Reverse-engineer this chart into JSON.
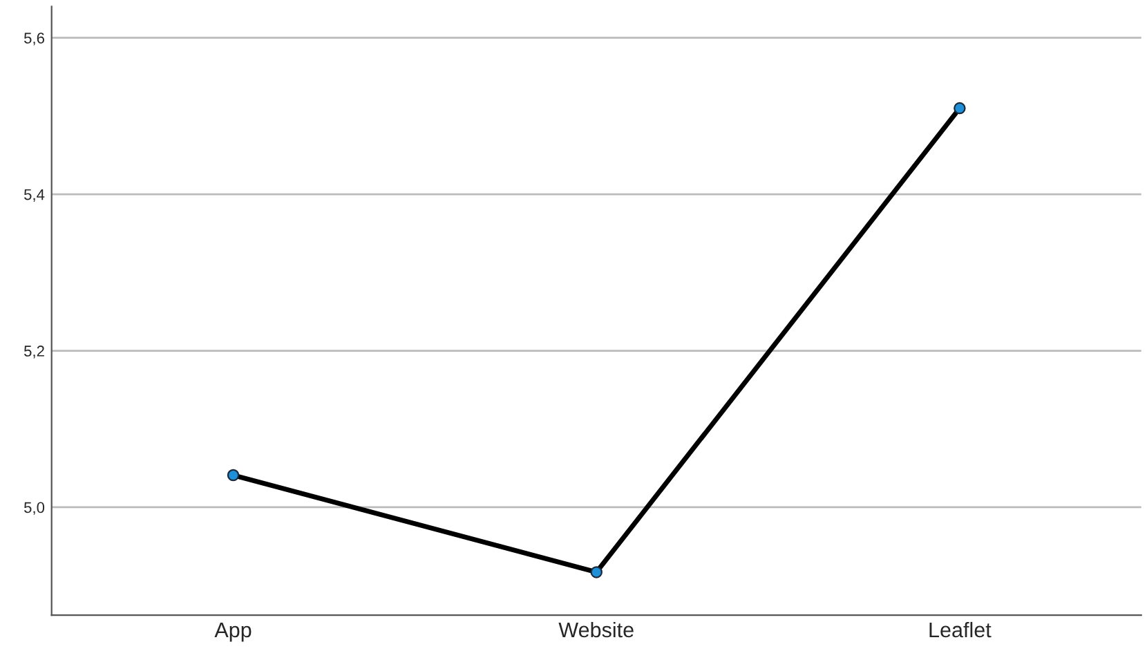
{
  "chart_data": {
    "type": "line",
    "categories": [
      "App",
      "Website",
      "Leaflet"
    ],
    "series": [
      {
        "color": "#000000",
        "values": [
          5.041,
          4.917,
          5.51
        ]
      }
    ],
    "marker": "circle",
    "line_style": "solid",
    "grid": "y",
    "ylim": [
      4.862,
      5.64
    ],
    "yticks": [
      {
        "value": 5.0,
        "label": "5,0"
      },
      {
        "value": 5.2,
        "label": "5,2"
      },
      {
        "value": 5.4,
        "label": "5,4"
      },
      {
        "value": 5.6,
        "label": "5,6"
      }
    ]
  }
}
